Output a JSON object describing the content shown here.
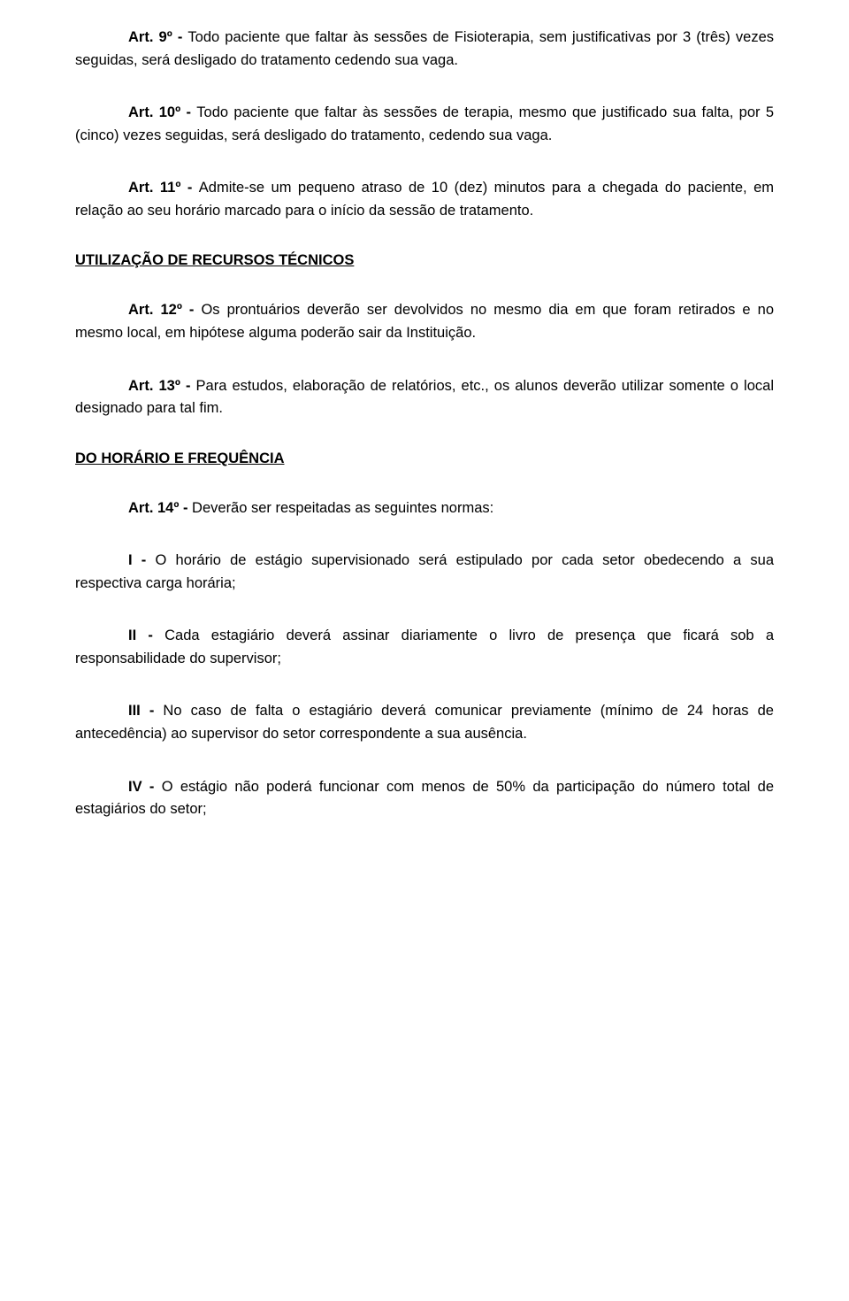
{
  "art9": {
    "label": "Art. 9º - ",
    "text": "Todo paciente que faltar às sessões de Fisioterapia, sem justificativas por 3 (três) vezes seguidas, será desligado do tratamento cedendo sua vaga."
  },
  "art10": {
    "label": "Art. 10º - ",
    "text": "Todo paciente que faltar às sessões de terapia, mesmo que justificado sua falta, por 5 (cinco) vezes seguidas, será desligado do tratamento, cedendo sua vaga."
  },
  "art11": {
    "label": "Art. 11º - ",
    "text": "Admite-se um pequeno atraso de 10 (dez) minutos para a chegada do paciente, em relação ao seu horário marcado para o início da sessão de tratamento."
  },
  "section1": {
    "title": "UTILIZAÇÃO DE RECURSOS TÉCNICOS"
  },
  "art12": {
    "label": "Art. 12º - ",
    "text": "Os prontuários deverão ser devolvidos no mesmo dia em que foram retirados e no mesmo local, em hipótese alguma poderão sair da Instituição."
  },
  "art13": {
    "label": "Art. 13º - ",
    "text": "Para estudos, elaboração de relatórios, etc., os alunos deverão utilizar somente o local designado para tal fim."
  },
  "section2": {
    "title": "DO HORÁRIO E FREQUÊNCIA"
  },
  "art14": {
    "label": "Art. 14º - ",
    "text": "Deverão ser respeitadas as seguintes normas:"
  },
  "item1": {
    "label": "I - ",
    "text": "O horário de estágio supervisionado será estipulado por cada setor obedecendo a sua respectiva carga horária;"
  },
  "item2": {
    "label": "II - ",
    "text": "Cada estagiário deverá assinar diariamente o livro de presença que ficará sob a responsabilidade do supervisor;"
  },
  "item3": {
    "label": "III - ",
    "text": "No caso de falta o estagiário deverá comunicar previamente (mínimo de 24 horas de antecedência) ao supervisor do setor correspondente a sua ausência."
  },
  "item4": {
    "label": "IV - ",
    "text": "O estágio não poderá funcionar com menos de 50% da participação do número total de estagiários do setor;"
  }
}
